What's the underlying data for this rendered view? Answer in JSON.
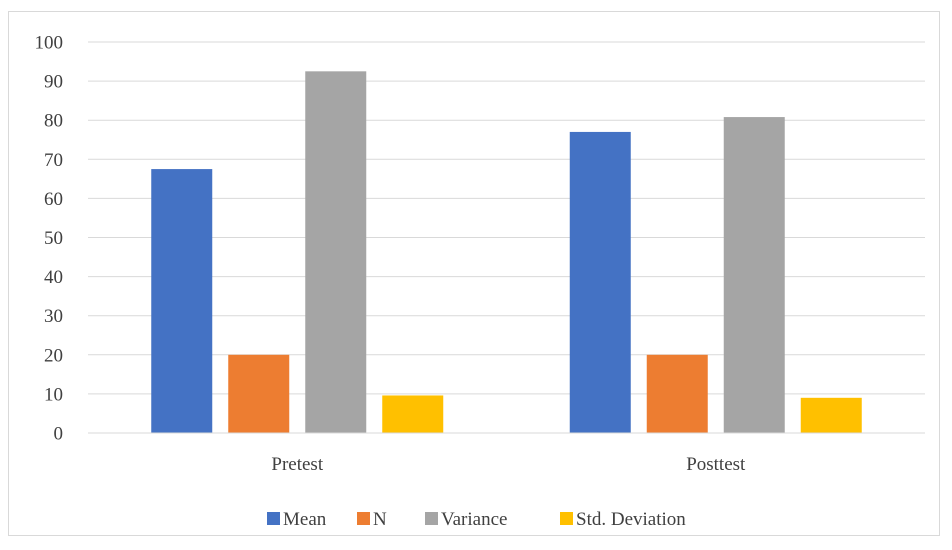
{
  "chart_data": {
    "type": "bar",
    "categories": [
      "Pretest",
      "Posttest"
    ],
    "series": [
      {
        "name": "Mean",
        "values": [
          67.5,
          77
        ],
        "color": "#4472c4"
      },
      {
        "name": "N",
        "values": [
          20,
          20
        ],
        "color": "#ed7d31"
      },
      {
        "name": "Variance",
        "values": [
          92.5,
          80.8
        ],
        "color": "#a5a5a5"
      },
      {
        "name": "Std. Deviation",
        "values": [
          9.6,
          9
        ],
        "color": "#ffc000"
      }
    ],
    "ylim": [
      0,
      100
    ],
    "yticks": [
      0,
      10,
      20,
      30,
      40,
      50,
      60,
      70,
      80,
      90,
      100
    ],
    "grid": true,
    "legend_position": "bottom"
  }
}
